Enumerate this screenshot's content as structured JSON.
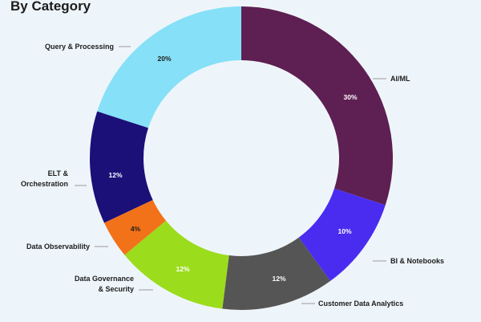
{
  "chart_data": {
    "type": "pie",
    "title": "By Category",
    "donut": true,
    "slices": [
      {
        "label": "AI/ML",
        "value": 30,
        "pct_label": "30%",
        "color": "#5e1f52"
      },
      {
        "label": "BI & Notebooks",
        "value": 10,
        "pct_label": "10%",
        "color": "#4a2cf0"
      },
      {
        "label": "Customer Data Analytics",
        "value": 12,
        "pct_label": "12%",
        "color": "#555555"
      },
      {
        "label": "Data Governance & Security",
        "value": 12,
        "pct_label": "12%",
        "color": "#9bdc1c"
      },
      {
        "label": "Data Observability",
        "value": 4,
        "pct_label": "4%",
        "color": "#f27219"
      },
      {
        "label": "ELT & Orchestration",
        "value": 12,
        "pct_label": "12%",
        "color": "#1b0f78"
      },
      {
        "label": "Query & Processing",
        "value": 20,
        "pct_label": "20%",
        "color": "#86e0f7"
      }
    ]
  }
}
